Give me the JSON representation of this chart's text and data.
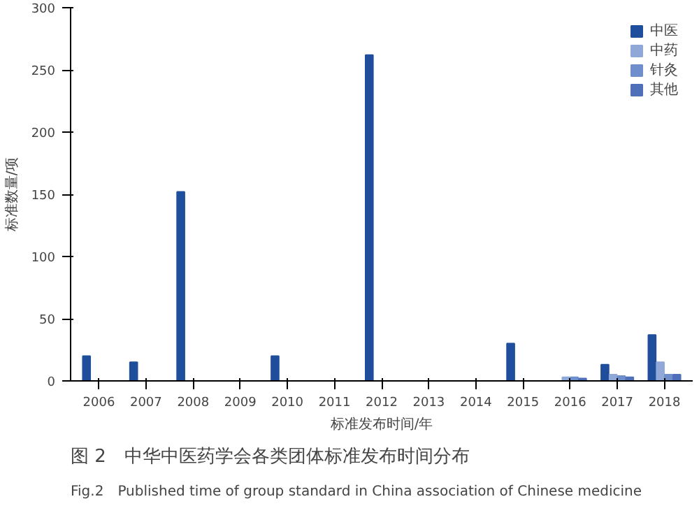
{
  "chart_data": {
    "type": "bar",
    "title": "图 2　中华中医药学会各类团体标准发布时间分布",
    "subtitle": "Fig.2　Published time of group standard in China association of Chinese medicine",
    "xlabel": "标准发布时间/年",
    "ylabel": "标准数量/项",
    "categories": [
      "2006",
      "2007",
      "2008",
      "2009",
      "2010",
      "2011",
      "2012",
      "2013",
      "2014",
      "2015",
      "2016",
      "2017",
      "2018"
    ],
    "series": [
      {
        "name": "中医",
        "color": "#1f4e9c",
        "values": [
          20,
          15,
          152,
          0,
          20,
          0,
          262,
          0,
          0,
          30,
          0,
          13,
          37
        ]
      },
      {
        "name": "中药",
        "color": "#8fa8d8",
        "values": [
          0,
          0,
          0,
          0,
          0,
          0,
          0,
          0,
          0,
          0,
          3,
          5,
          15
        ]
      },
      {
        "name": "针灸",
        "color": "#6f8fcc",
        "values": [
          0,
          0,
          0,
          0,
          0,
          0,
          0,
          0,
          0,
          0,
          3,
          4,
          5
        ]
      },
      {
        "name": "其他",
        "color": "#4f6fb8",
        "values": [
          0,
          0,
          0,
          0,
          0,
          0,
          0,
          0,
          0,
          0,
          2,
          3,
          5
        ]
      }
    ],
    "ylim": [
      0,
      300
    ],
    "yticks": [
      0,
      50,
      100,
      150,
      200,
      250,
      300
    ],
    "grid": false,
    "legend": "top right"
  }
}
